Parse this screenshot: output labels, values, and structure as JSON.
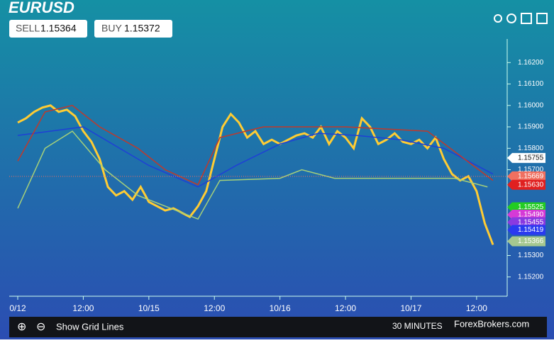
{
  "header": {
    "symbol": "EURUSD",
    "sell_label": "SELL",
    "sell_price": "1.15364",
    "buy_label": "BUY",
    "buy_price": "1.15372"
  },
  "toolbar": {
    "grid_lines": "Show Grid Lines",
    "interval": "30 MINUTES",
    "watermark": "ForexBrokers.com"
  },
  "chart_data": {
    "type": "line",
    "xlim": [
      -1.56,
      88.3
    ],
    "ylim": [
      1.1511,
      1.1631
    ],
    "xticks": [
      {
        "value": 0,
        "label": "0/12"
      },
      {
        "value": 12,
        "label": "12:00"
      },
      {
        "value": 24,
        "label": "10/15"
      },
      {
        "value": 36,
        "label": "12:00"
      },
      {
        "value": 48,
        "label": "10/16"
      },
      {
        "value": 60,
        "label": "12:00"
      },
      {
        "value": 72,
        "label": "10/17"
      },
      {
        "value": 84,
        "label": "12:00"
      }
    ],
    "yticks": [
      {
        "value": 1.162,
        "label": "1.16200"
      },
      {
        "value": 1.161,
        "label": "1.16100"
      },
      {
        "value": 1.16,
        "label": "1.16000"
      },
      {
        "value": 1.159,
        "label": "1.15900"
      },
      {
        "value": 1.158,
        "label": "1.15800"
      },
      {
        "value": 1.157,
        "label": "1.15700"
      },
      {
        "value": 1.153,
        "label": "1.15300"
      },
      {
        "value": 1.152,
        "label": "1.15200"
      }
    ],
    "series": [
      {
        "color": "#ffcc33",
        "x": [
          0,
          1.5,
          3,
          4.5,
          6,
          7.5,
          9,
          10.5,
          12,
          13.5,
          15,
          16.5,
          18,
          19.5,
          21,
          22.5,
          24,
          25.5,
          27,
          28.5,
          30,
          31.5,
          33,
          34.5,
          36,
          37.5,
          39,
          40.5,
          42,
          43.5,
          45,
          46.5,
          48,
          49.5,
          51,
          52.5,
          54,
          55.5,
          57,
          58.5,
          60,
          61.5,
          63,
          64.5,
          66,
          67.5,
          69,
          70.5,
          72,
          73.5,
          75,
          76.5,
          78,
          79.5,
          81,
          82.5,
          84,
          85.5,
          87
        ],
        "values": [
          1.1592,
          1.1594,
          1.1597,
          1.1599,
          1.16,
          1.1597,
          1.1598,
          1.1595,
          1.1588,
          1.1583,
          1.1575,
          1.1562,
          1.1558,
          1.156,
          1.1556,
          1.1562,
          1.1555,
          1.1553,
          1.1551,
          1.1552,
          1.155,
          1.1548,
          1.1553,
          1.156,
          1.1575,
          1.159,
          1.1596,
          1.1592,
          1.1585,
          1.1588,
          1.1582,
          1.1584,
          1.1582,
          1.1584,
          1.1586,
          1.1587,
          1.1585,
          1.159,
          1.1582,
          1.1588,
          1.1585,
          1.158,
          1.1594,
          1.159,
          1.1582,
          1.1584,
          1.1587,
          1.1583,
          1.1582,
          1.1584,
          1.158,
          1.1585,
          1.1575,
          1.1568,
          1.1565,
          1.1567,
          1.156,
          1.1545,
          1.1535
        ]
      },
      {
        "color": "#1f3fd6",
        "x": [
          0,
          12,
          24,
          33,
          40,
          48,
          55,
          62,
          70,
          78,
          84,
          87
        ],
        "values": [
          1.1586,
          1.159,
          1.1572,
          1.1562,
          1.1572,
          1.1582,
          1.1587,
          1.1586,
          1.1584,
          1.158,
          1.1572,
          1.1568
        ]
      },
      {
        "color": "#c0392b",
        "x": [
          0,
          5,
          10,
          15,
          22,
          27,
          33,
          37,
          45,
          60,
          75,
          87
        ],
        "values": [
          1.1574,
          1.1597,
          1.16,
          1.159,
          1.158,
          1.157,
          1.1563,
          1.1585,
          1.159,
          1.159,
          1.1588,
          1.1565
        ]
      },
      {
        "color": "#a5d07a",
        "x": [
          0,
          5,
          10,
          16,
          22,
          30,
          33,
          37,
          48,
          52,
          58,
          80,
          86
        ],
        "values": [
          1.1552,
          1.158,
          1.1588,
          1.157,
          1.1558,
          1.155,
          1.1547,
          1.1565,
          1.1566,
          1.157,
          1.1566,
          1.1566,
          1.1562
        ]
      }
    ],
    "price_tags": [
      {
        "value": 1.15755,
        "label": "1.15755",
        "color": "#ffffff"
      },
      {
        "value": 1.15669,
        "label": "1.15669",
        "color": "#f07060"
      },
      {
        "value": 1.1563,
        "label": "1.15630",
        "color": "#e02020"
      },
      {
        "value": 1.15525,
        "label": "1.15525",
        "color": "#22cc22"
      },
      {
        "value": 1.1549,
        "label": "1.15490",
        "color": "#d63ad6"
      },
      {
        "value": 1.15455,
        "label": "1.15455",
        "color": "#8a3ae0"
      },
      {
        "value": 1.15419,
        "label": "1.15419",
        "color": "#2a3af0"
      },
      {
        "value": 1.15366,
        "label": "1.15366",
        "color": "#a5c890"
      }
    ]
  }
}
